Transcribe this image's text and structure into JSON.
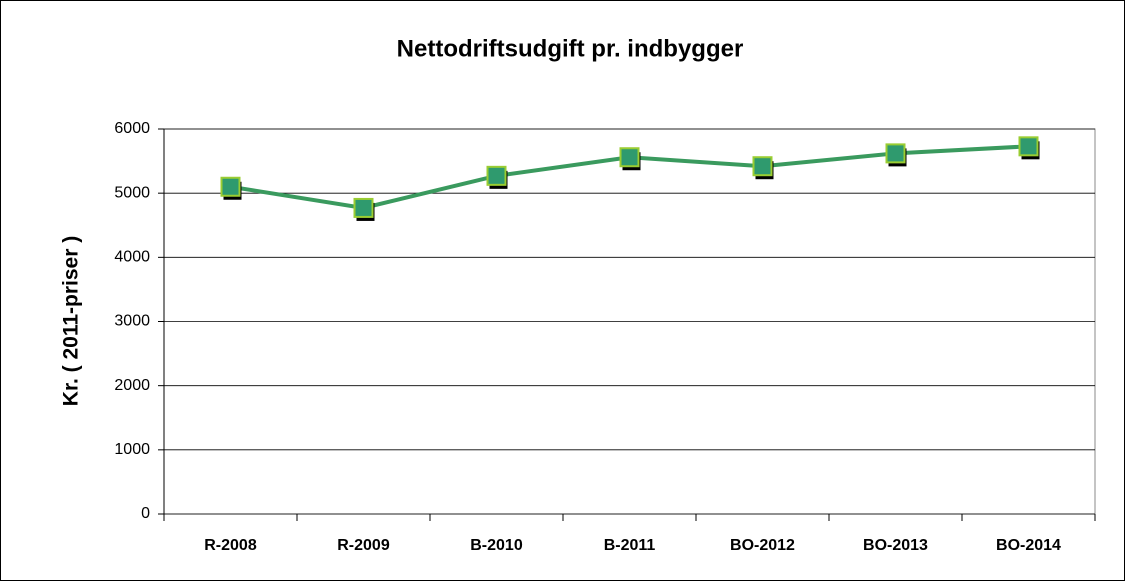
{
  "chart_data": {
    "type": "line",
    "title": "Nettodriftsudgift pr. indbygger",
    "y_label": "Kr. ( 2011-priser )",
    "categories": [
      "R-2008",
      "R-2009",
      "B-2010",
      "B-2011",
      "BO-2012",
      "BO-2013",
      "BO-2014"
    ],
    "values": [
      5100,
      4770,
      5270,
      5560,
      5420,
      5620,
      5730
    ],
    "color": "#3a9a5e",
    "marker_color": "#2f9a6e",
    "marker_edge": "#9acd32",
    "ylim": [
      0,
      6000
    ],
    "yticks": [
      0,
      1000,
      2000,
      3000,
      4000,
      5000,
      6000
    ],
    "grid": true
  }
}
